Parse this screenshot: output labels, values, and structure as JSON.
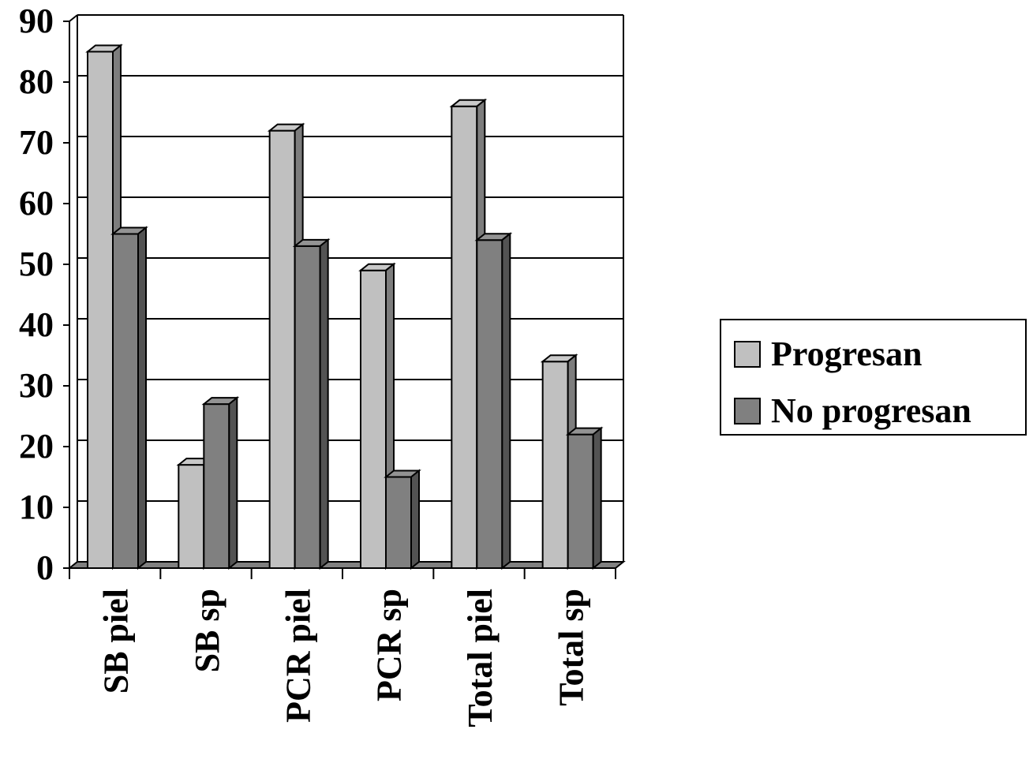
{
  "chart_data": {
    "type": "bar",
    "title": "",
    "xlabel": "",
    "ylabel": "",
    "categories": [
      "SB piel",
      "SB sp",
      "PCR piel",
      "PCR sp",
      "Total piel",
      "Total sp"
    ],
    "series": [
      {
        "name": "Progresan",
        "values": [
          85,
          17,
          72,
          49,
          76,
          34
        ]
      },
      {
        "name": "No progresan",
        "values": [
          55,
          27,
          53,
          15,
          54,
          22
        ]
      }
    ],
    "ylim": [
      0,
      90
    ],
    "yticks": [
      0,
      10,
      20,
      30,
      40,
      50,
      60,
      70,
      80,
      90
    ],
    "grid": true,
    "legend": "right",
    "colors": {
      "Progresan": "#c0c0c0",
      "No progresan": "#808080",
      "frame": "#000000"
    }
  }
}
